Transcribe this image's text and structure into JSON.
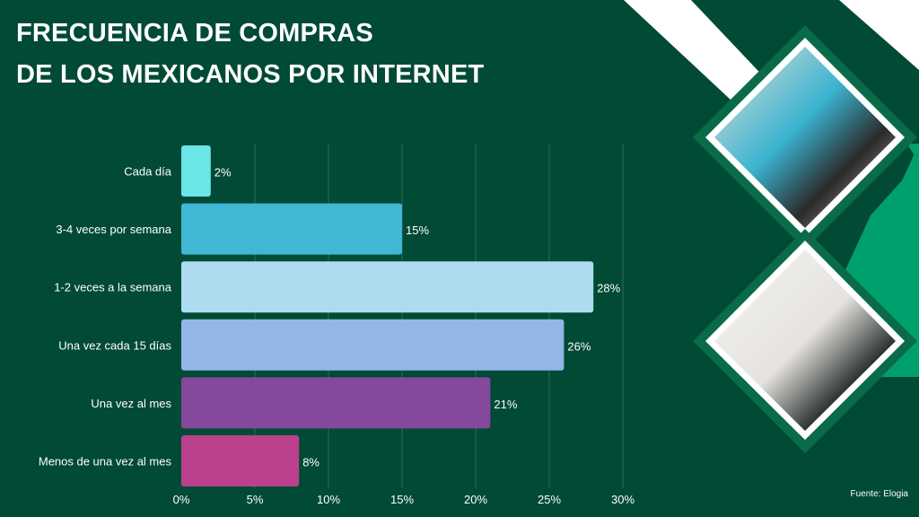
{
  "title_lines": [
    "FRECUENCIA DE COMPRAS",
    "DE LOS MEXICANOS POR INTERNET"
  ],
  "source": "Fuente: Elogia",
  "colors": {
    "background": "#014a35",
    "accent_green": "#00a06e",
    "frame_green": "#0a6b48"
  },
  "images": [
    "woman-in-blue-hoodie-reading-paper-photo",
    "hands-holding-phone-and-credit-card-photo"
  ],
  "chart_data": {
    "type": "bar",
    "orientation": "horizontal",
    "categories": [
      "Cada día",
      "3-4 veces por semana",
      "1-2 veces a la semana",
      "Una vez cada 15 días",
      "Una vez al mes",
      "Menos de una vez al mes"
    ],
    "values": [
      2,
      15,
      28,
      26,
      21,
      8
    ],
    "data_labels": [
      "2%",
      "15%",
      "28%",
      "26%",
      "21%",
      "8%"
    ],
    "bar_colors": [
      "#6ce6e8",
      "#41b7d6",
      "#addcf0",
      "#92b6e6",
      "#85489c",
      "#bc418c"
    ],
    "xlim": [
      0,
      30
    ],
    "xticks": [
      0,
      5,
      10,
      15,
      20,
      25,
      30
    ],
    "xtick_labels": [
      "0%",
      "5%",
      "10%",
      "15%",
      "20%",
      "25%",
      "30%"
    ],
    "grid": true,
    "title": "",
    "xlabel": "",
    "ylabel": ""
  }
}
